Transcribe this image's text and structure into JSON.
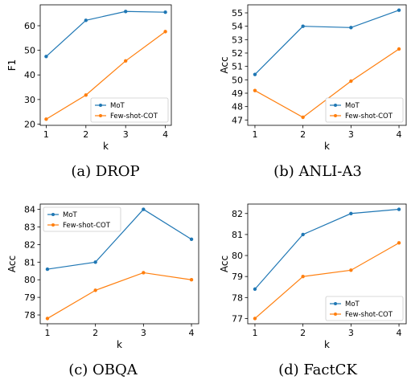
{
  "colors": {
    "mot": "#1f77b4",
    "few_shot_cot": "#ff7f0e"
  },
  "chart_data": [
    {
      "type": "line",
      "caption": "(a) DROP",
      "xlabel": "k",
      "ylabel": "F1",
      "x": [
        1,
        2,
        3,
        4
      ],
      "xlim": [
        0.85,
        4.15
      ],
      "ylim": [
        19.5,
        68.5
      ],
      "yticks": [
        20,
        30,
        40,
        50,
        60
      ],
      "legend": "lower-right",
      "series": [
        {
          "name": "MoT",
          "values": [
            47.5,
            62.2,
            65.8,
            65.5
          ]
        },
        {
          "name": "Few-shot-COT",
          "values": [
            22.0,
            31.8,
            45.7,
            57.6
          ]
        }
      ]
    },
    {
      "type": "line",
      "caption": "(b) ANLI-A3",
      "xlabel": "k",
      "ylabel": "Acc",
      "x": [
        1,
        2,
        3,
        4
      ],
      "xlim": [
        0.85,
        4.15
      ],
      "ylim": [
        46.6,
        55.6
      ],
      "yticks": [
        47,
        48,
        49,
        50,
        51,
        52,
        53,
        54,
        55
      ],
      "legend": "lower-right",
      "series": [
        {
          "name": "MoT",
          "values": [
            50.4,
            54.0,
            53.9,
            55.2
          ]
        },
        {
          "name": "Few-shot-COT",
          "values": [
            49.2,
            47.2,
            49.9,
            52.3
          ]
        }
      ]
    },
    {
      "type": "line",
      "caption": "(c) OBQA",
      "xlabel": "k",
      "ylabel": "Acc",
      "x": [
        1,
        2,
        3,
        4
      ],
      "xlim": [
        0.85,
        4.15
      ],
      "ylim": [
        77.5,
        84.3
      ],
      "yticks": [
        78,
        79,
        80,
        81,
        82,
        83,
        84
      ],
      "legend": "upper-left",
      "series": [
        {
          "name": "MoT",
          "values": [
            80.6,
            81.0,
            84.0,
            82.3
          ]
        },
        {
          "name": "Few-shot-COT",
          "values": [
            77.8,
            79.4,
            80.4,
            80.0
          ]
        }
      ]
    },
    {
      "type": "line",
      "caption": "(d) FactCK",
      "xlabel": "k",
      "ylabel": "Acc",
      "x": [
        1,
        2,
        3,
        4
      ],
      "xlim": [
        0.85,
        4.15
      ],
      "ylim": [
        76.75,
        82.45
      ],
      "yticks": [
        77,
        78,
        79,
        80,
        81,
        82
      ],
      "legend": "lower-right",
      "series": [
        {
          "name": "MoT",
          "values": [
            78.4,
            81.0,
            82.0,
            82.2
          ]
        },
        {
          "name": "Few-shot-COT",
          "values": [
            77.0,
            79.0,
            79.3,
            80.6
          ]
        }
      ]
    }
  ]
}
